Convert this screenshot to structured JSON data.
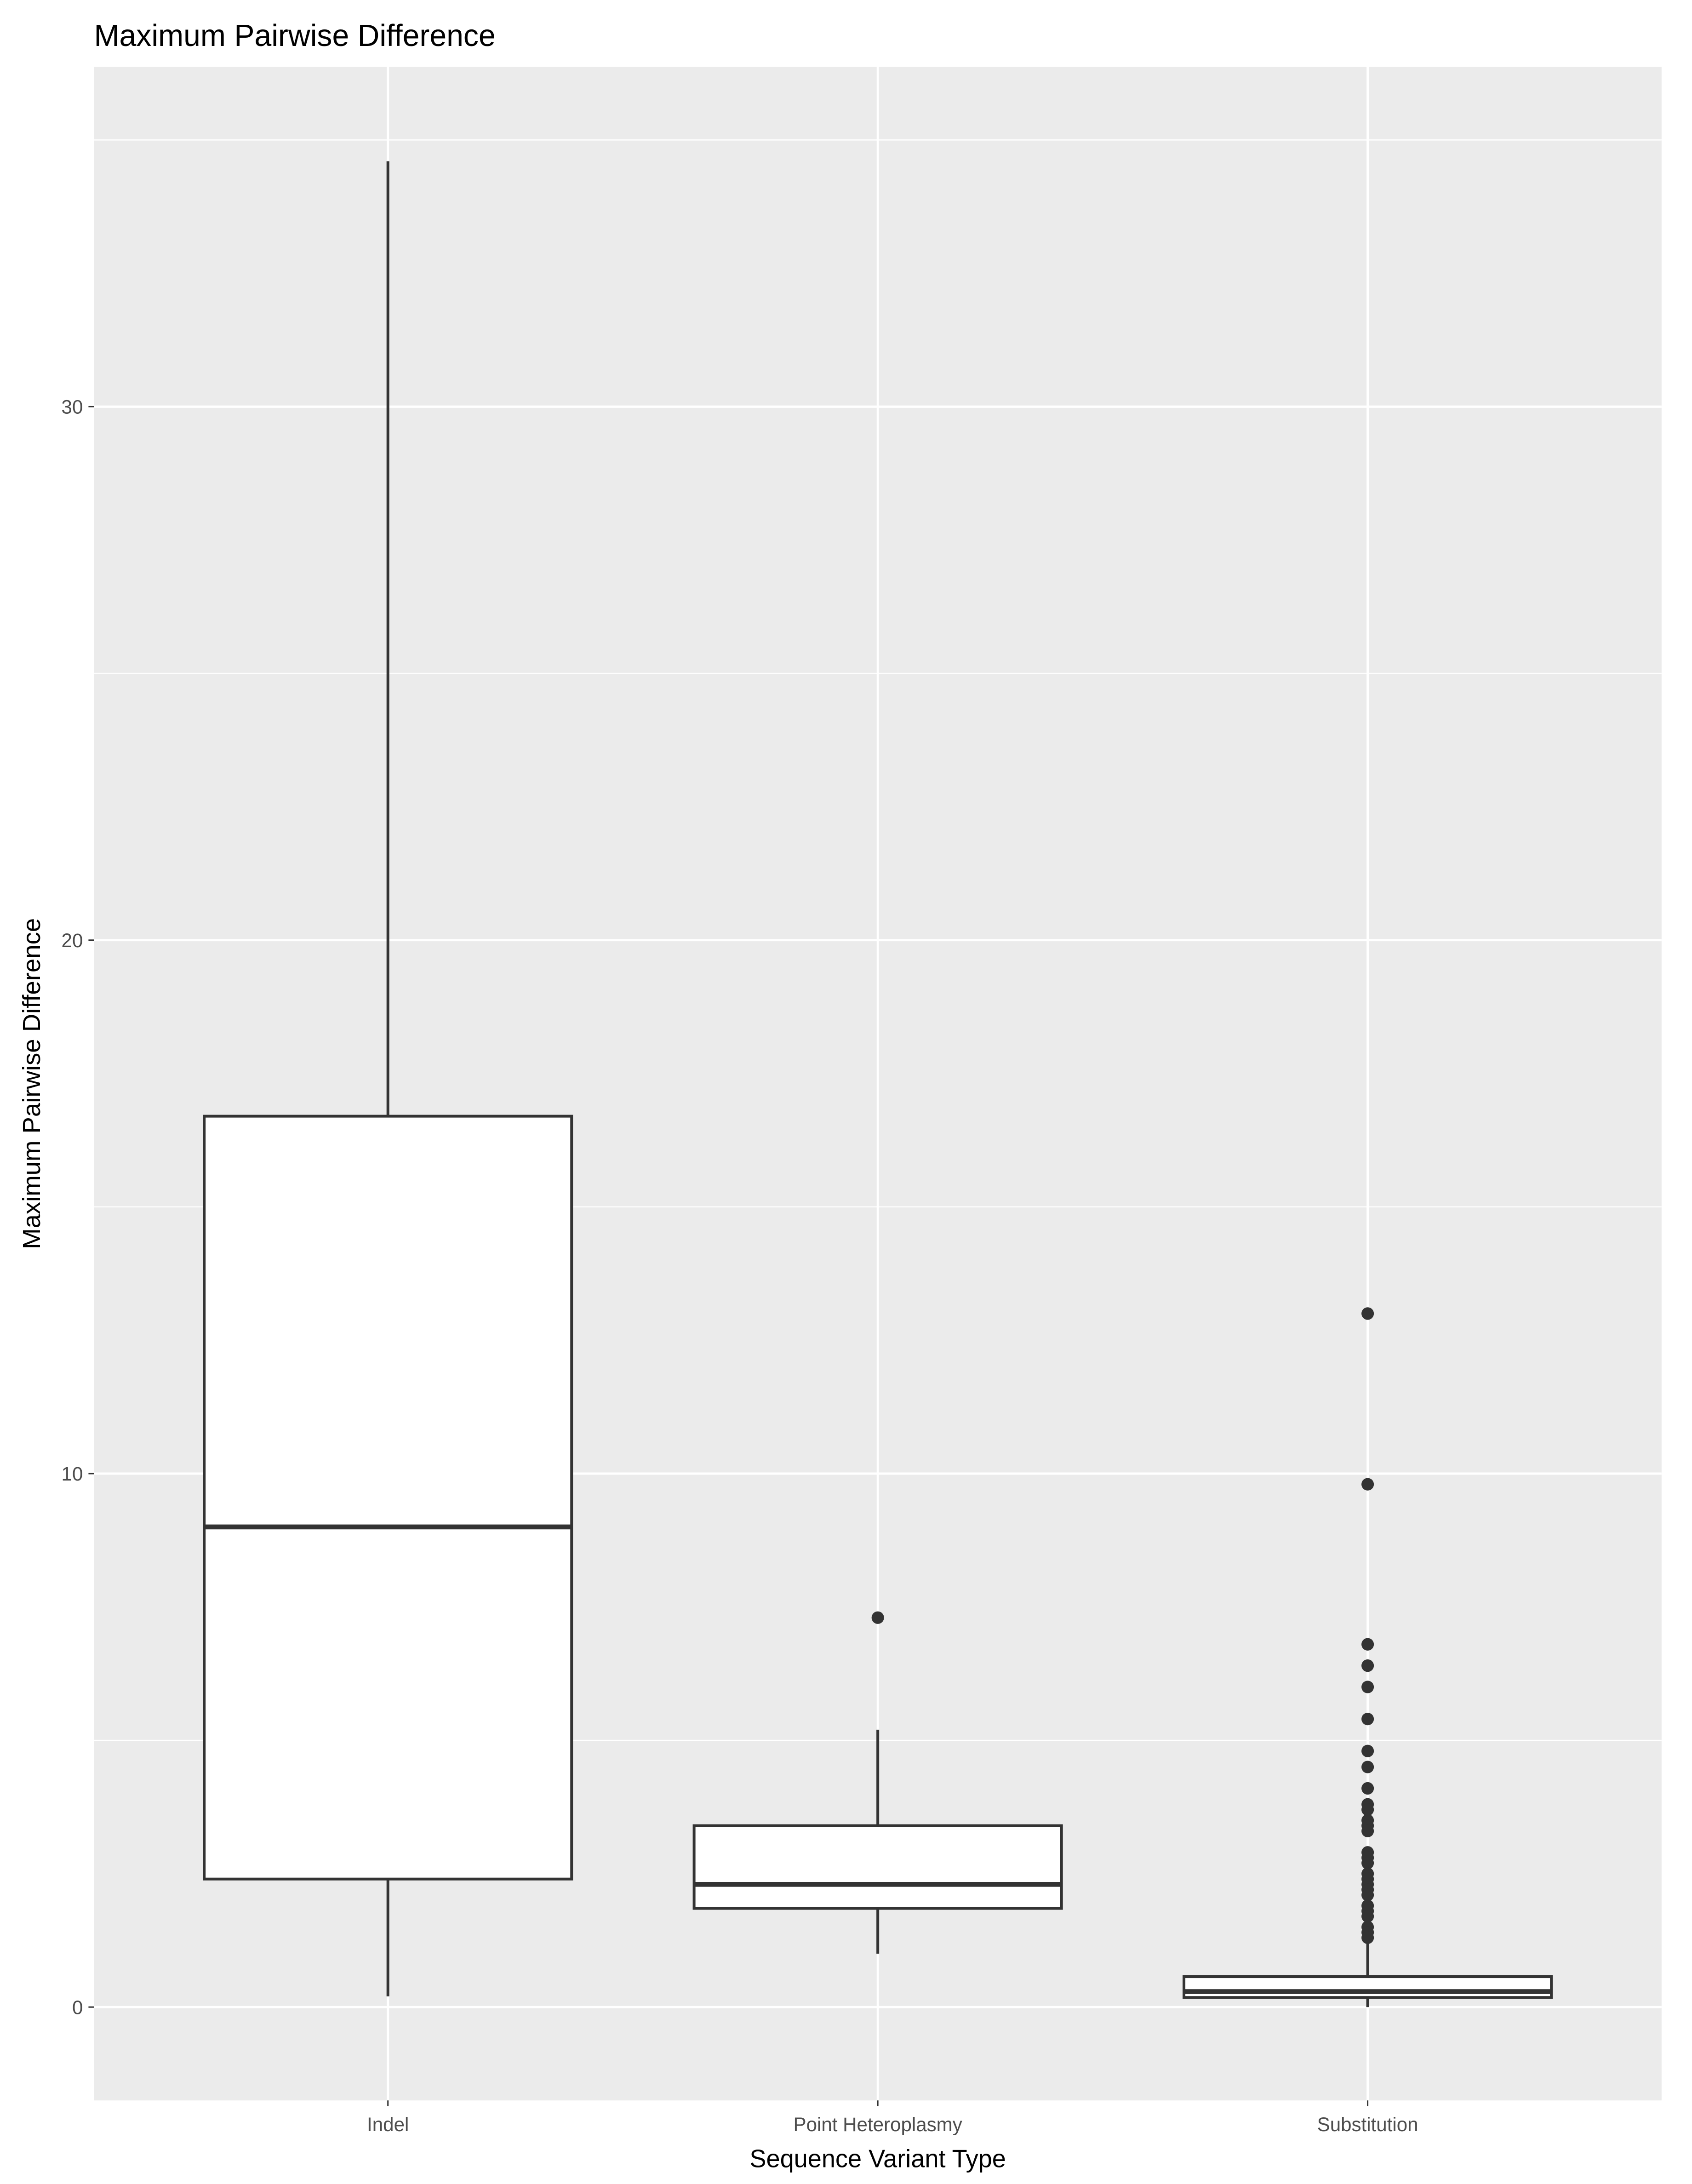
{
  "chart_data": {
    "type": "box",
    "title": "Maximum Pairwise Difference",
    "xlabel": "Sequence Variant Type",
    "ylabel": "Maximum Pairwise Difference",
    "categories": [
      "Indel",
      "Point Heteroplasmy",
      "Substitution"
    ],
    "boxes": [
      {
        "whisker_low": 0.2,
        "q1": 2.4,
        "median": 9.0,
        "q3": 16.7,
        "whisker_high": 34.6,
        "outliers": []
      },
      {
        "whisker_low": 1.0,
        "q1": 1.85,
        "median": 2.3,
        "q3": 3.4,
        "whisker_high": 5.2,
        "outliers": [
          7.3
        ]
      },
      {
        "whisker_low": 0,
        "q1": 0.18,
        "median": 0.29,
        "q3": 0.57,
        "whisker_high": 1.2,
        "outliers": [
          13.0,
          9.8,
          6.8,
          6.4,
          6.0,
          5.4,
          4.8,
          4.5,
          4.1,
          3.8,
          3.7,
          3.5,
          3.4,
          3.3,
          2.9,
          2.8,
          2.7,
          2.5,
          2.4,
          2.3,
          2.2,
          2.1,
          1.9,
          1.8,
          1.7,
          1.5,
          1.4,
          1.3
        ]
      }
    ],
    "fill": "#ffffff",
    "stroke": "#333333",
    "ylim": [
      -1.75,
      36.37
    ],
    "yticks": [
      0,
      10,
      20,
      30
    ],
    "grid": true,
    "minor_grid": true
  }
}
